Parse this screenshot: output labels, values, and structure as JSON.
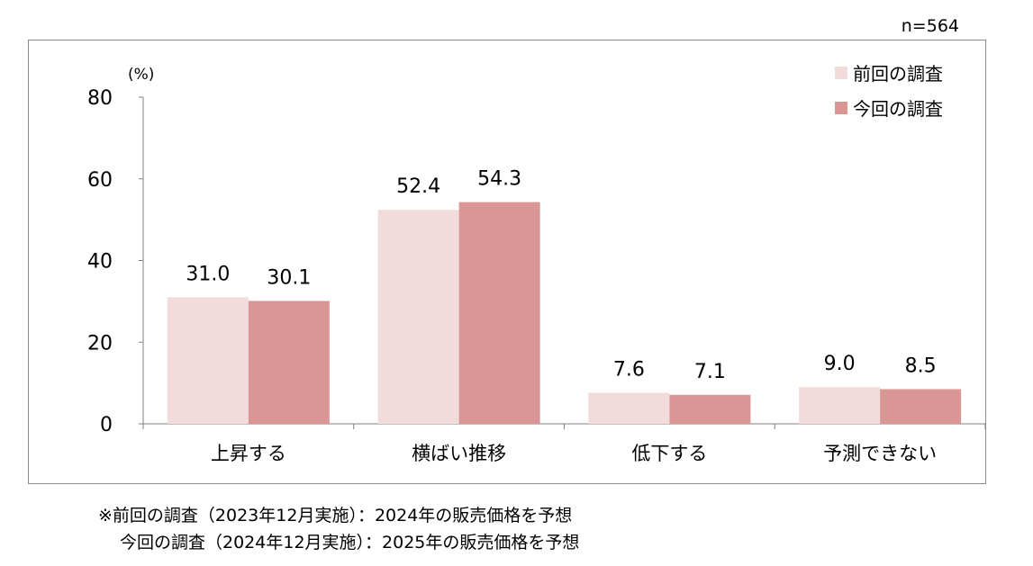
{
  "sample_label": "n=564",
  "footnotes": {
    "line1": "※前回の調査（2023年12月実施）：2024年の販売価格を予想",
    "line2": "今回の調査（2024年12月実施）：2025年の販売価格を予想"
  },
  "chart_data": {
    "type": "bar",
    "categories": [
      "上昇する",
      "横ばい推移",
      "低下する",
      "予測できない"
    ],
    "series": [
      {
        "name": "前回の調査",
        "values": [
          31.0,
          52.4,
          7.6,
          9.0
        ],
        "labels": [
          "31.0",
          "52.4",
          "7.6",
          "9.0"
        ],
        "color": "#f2dcdb"
      },
      {
        "name": "今回の調査",
        "values": [
          30.1,
          54.3,
          7.1,
          8.5
        ],
        "labels": [
          "30.1",
          "54.3",
          "7.1",
          "8.5"
        ],
        "color": "#d99694"
      }
    ],
    "ylabel": "(%)",
    "ylim": [
      0,
      80
    ],
    "yticks": [
      "0",
      "20",
      "40",
      "60",
      "80"
    ],
    "legend_position": "top-right",
    "grid": false
  }
}
